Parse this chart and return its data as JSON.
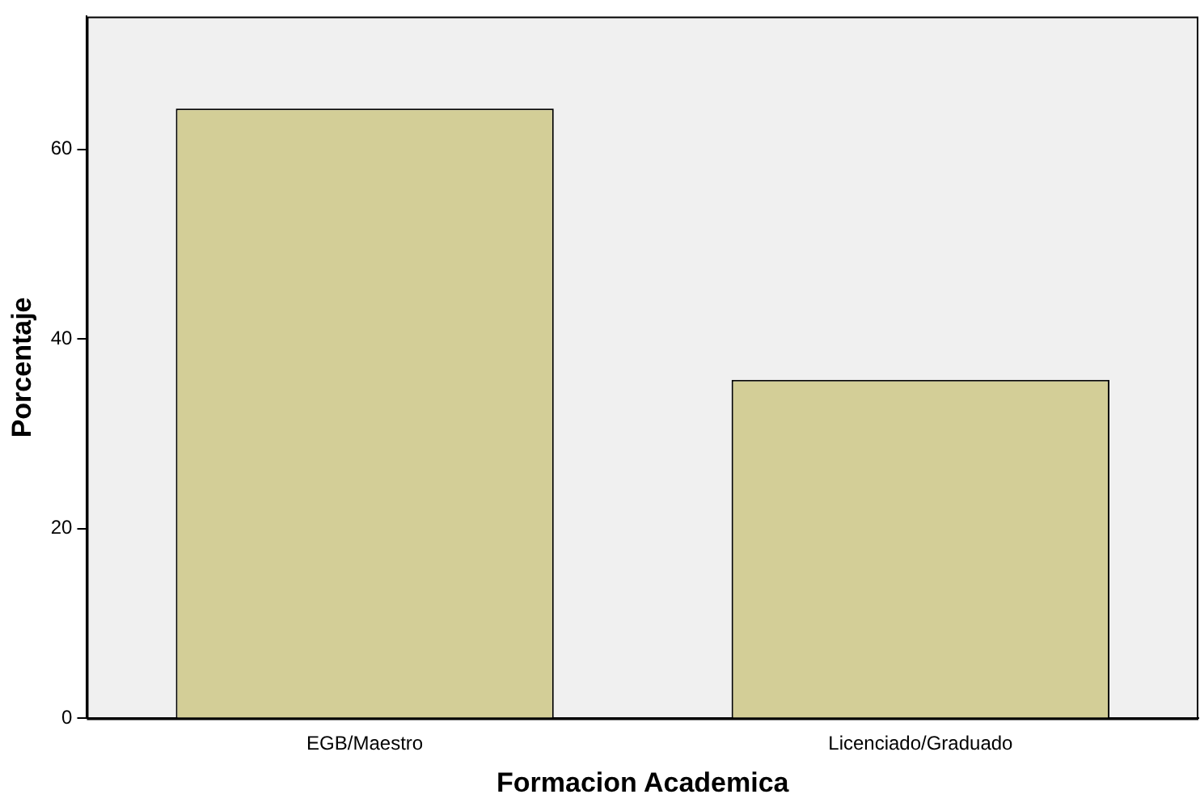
{
  "chart_data": {
    "type": "bar",
    "xlabel": "Formacion Academica",
    "ylabel": "Porcentaje",
    "categories": [
      "EGB/Maestro",
      "Licenciado/Graduado"
    ],
    "values": [
      64.3,
      35.7
    ],
    "color": "#d3ce97",
    "ylim": [
      0,
      74
    ],
    "yticks": [
      0,
      20,
      40,
      60
    ],
    "grid": false,
    "legend": false
  }
}
